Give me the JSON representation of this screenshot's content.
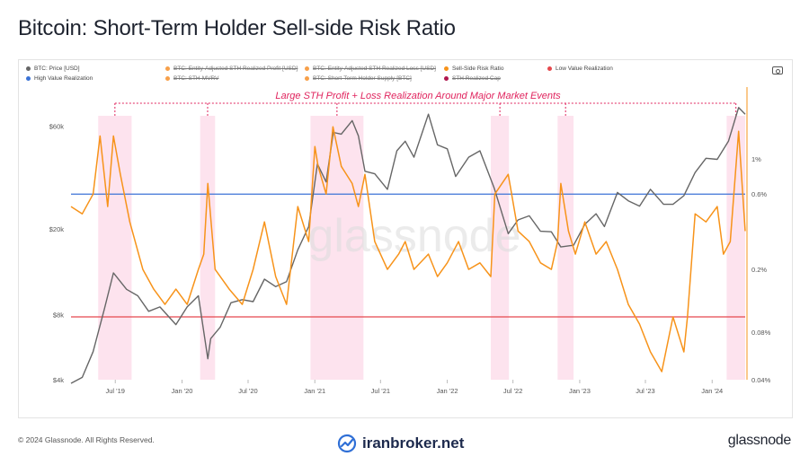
{
  "title": "Bitcoin: Short-Term Holder Sell-side Risk Ratio",
  "legend": [
    [
      {
        "label": "BTC: Price [USD]",
        "color": "#666666",
        "active": true
      },
      {
        "label": "BTC: Entity-Adjusted STH Realized Profit [USD]",
        "color": "#f7a04a",
        "active": false
      },
      {
        "label": "BTC: Entity-Adjusted STH Realized Loss [USD]",
        "color": "#f7a04a",
        "active": false
      },
      {
        "label": "Sell-Side Risk Ratio",
        "color": "#f7931a",
        "active": true
      },
      {
        "label": "Low Value Realization",
        "color": "#e5484d",
        "active": true
      }
    ],
    [
      {
        "label": "High Value Realization",
        "color": "#3b73d6",
        "active": true
      },
      {
        "label": "BTC: STH-MVRV",
        "color": "#f7a04a",
        "active": false
      },
      {
        "label": "BTC: Short-Term Holder Supply [BTC]",
        "color": "#f7a04a",
        "active": false
      },
      {
        "label": "STH Realized Cap",
        "color": "#b0174f",
        "active": false
      }
    ]
  ],
  "annotation": "Large STH Profit + Loss Realization Around Major Market Events",
  "watermark": "glassnode",
  "footer": {
    "copyright": "© 2024 Glassnode. All Rights Reserved.",
    "center_brand": "iranbroker.net",
    "right_brand": "glassnode"
  },
  "colors": {
    "price": "#666666",
    "ratio": "#f7931a",
    "low": "#e5484d",
    "high": "#3b73d6",
    "highlight": "#fde3ee",
    "annotation": "#e0245e"
  },
  "chart_data": {
    "type": "line",
    "title": "Bitcoin: Short-Term Holder Sell-side Risk Ratio",
    "x_ticks": [
      "Jul '19",
      "Jan '20",
      "Jul '20",
      "Jan '21",
      "Jul '21",
      "Jan '22",
      "Jul '22",
      "Jan '23",
      "Jul '23",
      "Jan '24"
    ],
    "y_left": {
      "scale": "log",
      "ticks": [
        "$4k",
        "$8k",
        "$20k",
        "$60k"
      ],
      "tick_values": [
        4000,
        8000,
        20000,
        60000
      ],
      "range": [
        4000,
        75000
      ]
    },
    "y_right": {
      "scale": "log",
      "ticks": [
        "0.04%",
        "0.08%",
        "0.2%",
        "0.6%",
        "1%"
      ],
      "tick_values": [
        0.04,
        0.08,
        0.2,
        0.6,
        1
      ],
      "range": [
        0.04,
        2.2
      ]
    },
    "x_range": [
      "2019-03-01",
      "2024-04-01"
    ],
    "reference_lines": [
      {
        "name": "High Value Realization",
        "value": 0.6
      },
      {
        "name": "Low Value Realization",
        "value": 0.1
      }
    ],
    "highlight_ranges": [
      [
        "2019-05-15",
        "2019-08-15"
      ],
      [
        "2020-02-20",
        "2020-04-01"
      ],
      [
        "2020-12-20",
        "2021-05-15"
      ],
      [
        "2022-05-01",
        "2022-06-20"
      ],
      [
        "2022-11-01",
        "2022-12-15"
      ],
      [
        "2024-02-10",
        "2024-04-01"
      ]
    ],
    "series": [
      {
        "name": "BTC: Price [USD]",
        "axis": "left",
        "x": [
          "2019-03-01",
          "2019-04-01",
          "2019-05-01",
          "2019-06-01",
          "2019-06-26",
          "2019-08-01",
          "2019-09-01",
          "2019-10-01",
          "2019-11-01",
          "2019-12-15",
          "2020-01-15",
          "2020-02-15",
          "2020-03-12",
          "2020-03-20",
          "2020-04-15",
          "2020-05-15",
          "2020-06-15",
          "2020-07-15",
          "2020-08-15",
          "2020-09-15",
          "2020-10-15",
          "2020-11-15",
          "2020-12-15",
          "2021-01-08",
          "2021-02-01",
          "2021-02-21",
          "2021-03-15",
          "2021-04-14",
          "2021-05-01",
          "2021-05-19",
          "2021-06-15",
          "2021-07-20",
          "2021-08-15",
          "2021-09-07",
          "2021-10-01",
          "2021-11-10",
          "2021-12-05",
          "2022-01-01",
          "2022-01-24",
          "2022-03-01",
          "2022-04-01",
          "2022-05-10",
          "2022-06-18",
          "2022-07-15",
          "2022-08-15",
          "2022-09-15",
          "2022-10-15",
          "2022-11-10",
          "2022-12-15",
          "2023-01-15",
          "2023-02-15",
          "2023-03-10",
          "2023-04-15",
          "2023-05-15",
          "2023-06-15",
          "2023-07-15",
          "2023-08-20",
          "2023-09-15",
          "2023-10-15",
          "2023-11-15",
          "2023-12-15",
          "2024-01-15",
          "2024-02-15",
          "2024-03-14",
          "2024-04-01"
        ],
        "y": [
          3850,
          4100,
          5400,
          8500,
          12500,
          10500,
          9800,
          8300,
          8700,
          7200,
          8700,
          9800,
          5000,
          6200,
          7000,
          9100,
          9400,
          9200,
          11700,
          10800,
          11400,
          16000,
          20500,
          40000,
          33000,
          56000,
          55000,
          63500,
          54000,
          37000,
          36000,
          30500,
          46000,
          51000,
          43000,
          68000,
          49000,
          47000,
          35000,
          43000,
          46000,
          31000,
          19000,
          22000,
          23000,
          19500,
          19400,
          16500,
          16800,
          21000,
          23500,
          20500,
          29500,
          27000,
          25500,
          30500,
          26000,
          26000,
          28500,
          36500,
          42500,
          42000,
          51000,
          73000,
          68000
        ]
      },
      {
        "name": "Sell-Side Risk Ratio",
        "axis": "right",
        "x": [
          "2019-03-01",
          "2019-04-01",
          "2019-05-01",
          "2019-05-20",
          "2019-06-10",
          "2019-06-26",
          "2019-07-15",
          "2019-08-10",
          "2019-09-15",
          "2019-10-15",
          "2019-11-15",
          "2019-12-15",
          "2020-01-15",
          "2020-02-15",
          "2020-03-01",
          "2020-03-12",
          "2020-04-01",
          "2020-05-10",
          "2020-06-15",
          "2020-07-15",
          "2020-08-15",
          "2020-09-15",
          "2020-10-15",
          "2020-11-15",
          "2020-12-15",
          "2021-01-01",
          "2021-01-10",
          "2021-02-01",
          "2021-02-20",
          "2021-03-15",
          "2021-04-14",
          "2021-05-01",
          "2021-05-19",
          "2021-06-15",
          "2021-07-20",
          "2021-08-20",
          "2021-09-07",
          "2021-10-01",
          "2021-11-10",
          "2021-12-05",
          "2022-01-01",
          "2022-02-01",
          "2022-03-01",
          "2022-04-01",
          "2022-05-01",
          "2022-05-12",
          "2022-06-18",
          "2022-07-15",
          "2022-08-15",
          "2022-09-15",
          "2022-10-15",
          "2022-11-01",
          "2022-11-10",
          "2022-12-01",
          "2022-12-20",
          "2023-01-15",
          "2023-02-15",
          "2023-03-15",
          "2023-04-15",
          "2023-05-15",
          "2023-06-15",
          "2023-07-15",
          "2023-08-15",
          "2023-09-15",
          "2023-10-15",
          "2023-10-25",
          "2023-11-15",
          "2023-12-15",
          "2024-01-15",
          "2024-02-01",
          "2024-02-20",
          "2024-03-14",
          "2024-04-01"
        ],
        "y": [
          0.5,
          0.45,
          0.6,
          1.4,
          0.5,
          1.4,
          0.8,
          0.4,
          0.2,
          0.15,
          0.12,
          0.15,
          0.12,
          0.2,
          0.25,
          0.7,
          0.2,
          0.15,
          0.12,
          0.2,
          0.4,
          0.18,
          0.12,
          0.5,
          0.3,
          1.2,
          0.9,
          0.6,
          1.6,
          0.9,
          0.7,
          0.5,
          0.8,
          0.3,
          0.2,
          0.25,
          0.3,
          0.2,
          0.25,
          0.18,
          0.22,
          0.3,
          0.2,
          0.22,
          0.18,
          0.6,
          0.8,
          0.35,
          0.3,
          0.22,
          0.2,
          0.3,
          0.7,
          0.35,
          0.25,
          0.4,
          0.25,
          0.3,
          0.2,
          0.12,
          0.09,
          0.06,
          0.045,
          0.1,
          0.06,
          0.1,
          0.45,
          0.4,
          0.5,
          0.25,
          0.3,
          1.5,
          0.35
        ]
      }
    ]
  }
}
